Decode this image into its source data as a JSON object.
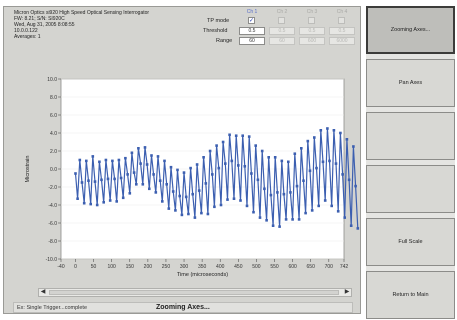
{
  "info": {
    "title": "Micron Optics si920 High Speed Optical Sensing Interrogator",
    "fw": "FW: 8.21; S/N: SI920C",
    "date": "Wed, Aug 31, 2005  8:08:55",
    "ip": "10.0.0.122",
    "averages": "Averages: 1"
  },
  "channels": {
    "headers": [
      "Ch 1",
      "Ch 2",
      "Ch 3",
      "Ch 4"
    ],
    "tp_mode_label": "TP mode",
    "tp_checked": [
      "✓",
      "",
      "",
      ""
    ],
    "threshold_label": "Threshold",
    "threshold_values": [
      "0.5",
      "0.5",
      "0.5",
      "0.5"
    ],
    "range_label": "Range",
    "range_values": [
      "60",
      "60",
      "600",
      "6000"
    ]
  },
  "chart_data": {
    "type": "line",
    "xlabel": "Time (microseconds)",
    "ylabel": "Microstrain",
    "xlim": [
      -40,
      742
    ],
    "ylim": [
      -10,
      10
    ],
    "xticks": [
      "-40",
      "0",
      "50",
      "100",
      "150",
      "200",
      "250",
      "300",
      "350",
      "400",
      "450",
      "500",
      "550",
      "600",
      "650",
      "700",
      "742"
    ],
    "yticks": [
      "10.0",
      "8.0",
      "6.0",
      "4.0",
      "2.0",
      "0.0",
      "-2.0",
      "-4.0",
      "-6.0",
      "-8.0",
      "-10.0"
    ],
    "series": [
      {
        "x_start": 0,
        "x_end": 742,
        "step": 6,
        "values": [
          -0.5,
          -3.3,
          1.0,
          -1.5,
          -3.8,
          0.9,
          -1.3,
          -3.9,
          1.4,
          -1.4,
          -4.0,
          0.8,
          -1.2,
          -3.7,
          1.0,
          -1.1,
          -3.5,
          0.9,
          -1.1,
          -3.6,
          1.0,
          -1.0,
          -3.2,
          1.2,
          -0.6,
          -2.7,
          1.8,
          -0.4,
          -1.7,
          2.3,
          0.6,
          -1.7,
          2.4,
          0.5,
          -2.2,
          1.5,
          -0.6,
          -2.6,
          1.4,
          -1.3,
          -3.6,
          0.9,
          -1.7,
          -4.4,
          0.2,
          -2.5,
          -4.6,
          -0.1,
          -3.0,
          -5.1,
          -0.4,
          -3.1,
          -5.0,
          0.1,
          -2.8,
          -5.4,
          0.5,
          -2.4,
          -4.9,
          1.3,
          -1.6,
          -5.0,
          2.0,
          -0.6,
          -4.2,
          2.6,
          0.1,
          -4.0,
          3.0,
          0.6,
          -3.4,
          3.8,
          0.9,
          -3.3,
          3.7,
          0.4,
          -3.5,
          3.7,
          0.3,
          -4.1,
          3.6,
          -0.5,
          -4.8,
          2.6,
          -1.2,
          -5.4,
          2.0,
          -2.2,
          -5.7,
          1.3,
          -2.9,
          -6.3,
          1.3,
          -2.6,
          -6.4,
          0.9,
          -2.8,
          -5.6,
          0.8,
          -2.6,
          -5.6,
          1.7,
          -1.9,
          -5.6,
          2.3,
          -1.3,
          -4.9,
          3.1,
          -0.2,
          -4.6,
          3.5,
          0.1,
          -4.1,
          4.3,
          0.8,
          -3.5,
          4.5,
          0.9,
          -4.1,
          4.3,
          0.6,
          -4.7,
          4.0,
          -0.6,
          -5.4,
          3.3,
          -1.2,
          -6.3,
          2.5,
          -1.9,
          -6.6
        ]
      }
    ]
  },
  "scrollbar": {
    "left_arrow": "◀",
    "right_arrow": "▶"
  },
  "status": {
    "left": "Ex: Single Trigger...complete",
    "message": "Zooming Axes..."
  },
  "buttons": [
    "Zooming Axes...",
    "Pan Axes",
    "",
    "",
    "Full Scale",
    "Return to Main"
  ],
  "colors": {
    "series": "#3c5fb0",
    "plot_bg": "#ffffff",
    "panel_bg": "#d4d4d0"
  }
}
